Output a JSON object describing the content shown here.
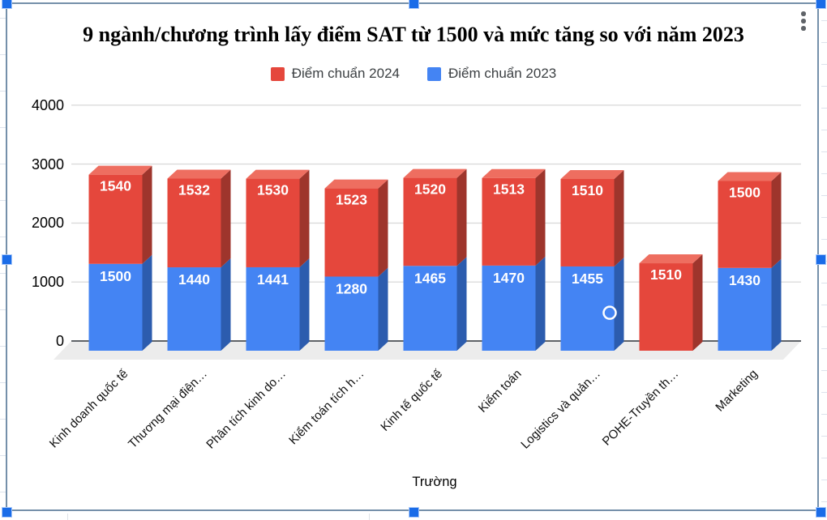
{
  "chart_data": {
    "type": "bar",
    "variant": "3d-stacked-column",
    "title": "9 ngành/chương trình lấy điểm SAT từ 1500 và mức tăng so với năm 2023",
    "xlabel": "Trường",
    "ylabel": "",
    "categories": [
      "Kinh doanh quốc tế",
      "Thương mại điện…",
      "Phân tích kinh do…",
      "Kiểm toán tích h…",
      "Kinh tế quốc tế",
      "Kiểm toán",
      "Logistics và quản…",
      "POHE-Truyền th…",
      "Marketing"
    ],
    "series": [
      {
        "name": "Điểm chuẩn 2024",
        "color": "#e5473c",
        "values": [
          1540,
          1532,
          1530,
          1523,
          1520,
          1513,
          1510,
          1510,
          1500
        ]
      },
      {
        "name": "Điểm chuẩn 2023",
        "color": "#4484f3",
        "values": [
          1500,
          1440,
          1441,
          1280,
          1465,
          1470,
          1455,
          null,
          1430
        ]
      }
    ],
    "stack_order_bottom_to_top": [
      "Điểm chuẩn 2023",
      "Điểm chuẩn 2024"
    ],
    "y_ticks": [
      0,
      1000,
      2000,
      3000,
      4000
    ],
    "ylim": [
      0,
      4000
    ],
    "grid": true,
    "legend_position": "top",
    "selected_point": {
      "category": "Logistics và quản…",
      "series": "Điểm chuẩn 2023"
    }
  },
  "colors": {
    "red_front": "#e5473c",
    "red_top": "#ee6e60",
    "red_side": "#9e352c",
    "blue_front": "#4484f3",
    "blue_side": "#2c5cae",
    "grid_line": "#dbdbdb",
    "axis_line": "#5f6368",
    "floor": "#ececec",
    "value_label": "#ffffff",
    "legend_text": "#3c4043",
    "selection_border": "#7590aa",
    "selection_handle": "#1a6ce8"
  },
  "icons": {
    "chart_menu": "kebab-vertical"
  }
}
